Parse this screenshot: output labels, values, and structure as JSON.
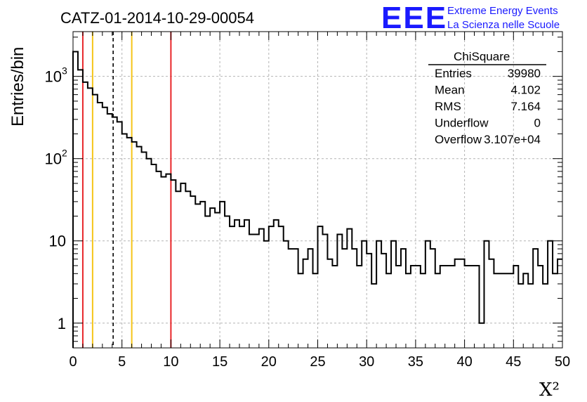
{
  "header": {
    "run_title": "CATZ-01-2014-10-29-00054",
    "logo_text": "EEE",
    "project_line1": "Extreme Energy Events",
    "project_line2": "La Scienza nelle Scuole"
  },
  "stats_box": {
    "title": "ChiSquare",
    "rows": [
      {
        "label": "Entries",
        "value": "39980"
      },
      {
        "label": "Mean",
        "value": "4.102"
      },
      {
        "label": "RMS",
        "value": "7.164"
      },
      {
        "label": "Underflow",
        "value": "0"
      },
      {
        "label": "Overflow",
        "value": "3.107e+04"
      }
    ]
  },
  "colors": {
    "histogram": "#000000",
    "red_line": "#e8262a",
    "yellow_line": "#f5c518",
    "dashed_line": "#000000",
    "grid": "#b4b4b4",
    "logo": "#1a1aff"
  },
  "chart_data": {
    "type": "histogram",
    "xlabel": "X²",
    "ylabel": "Entries/bin",
    "xlim": [
      0,
      50
    ],
    "ylim": [
      0.5,
      3500
    ],
    "yscale": "log",
    "grid": true,
    "x_ticks": [
      "0",
      "5",
      "10",
      "15",
      "20",
      "25",
      "30",
      "35",
      "40",
      "45",
      "50"
    ],
    "y_ticks": [
      {
        "value": 1,
        "label": "1"
      },
      {
        "value": 10,
        "label": "10"
      },
      {
        "value": 100,
        "label": "10",
        "exp": "2"
      },
      {
        "value": 1000,
        "label": "10",
        "exp": "3"
      }
    ],
    "bin_width": 0.5,
    "counts": [
      2000,
      1200,
      850,
      720,
      600,
      480,
      420,
      350,
      320,
      280,
      200,
      180,
      160,
      140,
      120,
      100,
      85,
      70,
      60,
      65,
      55,
      40,
      50,
      40,
      35,
      28,
      30,
      20,
      25,
      22,
      30,
      20,
      15,
      18,
      15,
      18,
      12,
      12,
      14,
      10,
      15,
      18,
      15,
      10,
      8,
      8,
      4,
      6,
      8,
      4,
      15,
      12,
      6,
      5,
      12,
      8,
      14,
      8,
      5,
      10,
      7,
      3,
      10,
      7,
      4,
      10,
      5,
      8,
      4,
      5,
      5,
      4,
      10,
      8,
      4,
      5,
      5,
      5,
      6,
      6,
      5,
      5,
      5,
      1,
      10,
      6,
      4,
      4,
      4,
      4,
      5,
      3,
      4,
      3,
      8,
      5,
      3,
      10,
      4,
      6
    ],
    "vertical_lines": [
      {
        "x": 1,
        "style": "red"
      },
      {
        "x": 2,
        "style": "yellow"
      },
      {
        "x": 4.1,
        "style": "dashed"
      },
      {
        "x": 6,
        "style": "yellow"
      },
      {
        "x": 10,
        "style": "red"
      }
    ]
  }
}
